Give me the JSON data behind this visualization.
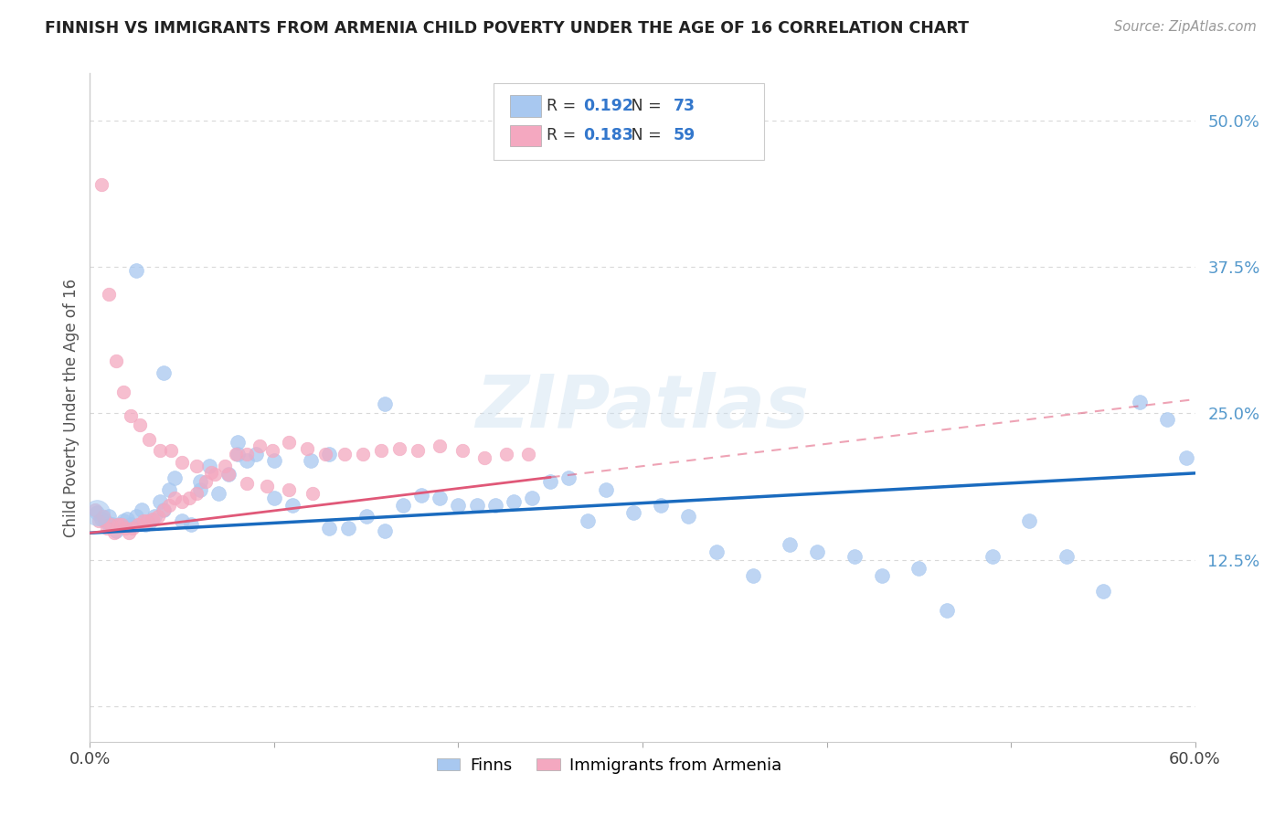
{
  "title": "FINNISH VS IMMIGRANTS FROM ARMENIA CHILD POVERTY UNDER THE AGE OF 16 CORRELATION CHART",
  "source": "Source: ZipAtlas.com",
  "ylabel": "Child Poverty Under the Age of 16",
  "xlim": [
    0.0,
    0.6
  ],
  "ylim": [
    -0.03,
    0.54
  ],
  "finns_R": 0.192,
  "finns_N": 73,
  "armenia_R": 0.183,
  "armenia_N": 59,
  "finns_color": "#a8c8f0",
  "armenia_color": "#f4a8c0",
  "finns_line_color": "#1a6bbf",
  "armenia_line_color": "#e05878",
  "background_color": "#ffffff",
  "grid_color": "#d8d8d8",
  "watermark": "ZIPatlas",
  "finns_slope": 0.085,
  "finns_intercept": 0.148,
  "armenia_slope": 0.19,
  "armenia_intercept": 0.148,
  "finns_x": [
    0.004,
    0.006,
    0.008,
    0.01,
    0.012,
    0.014,
    0.016,
    0.018,
    0.02,
    0.022,
    0.025,
    0.028,
    0.03,
    0.033,
    0.035,
    0.038,
    0.04,
    0.043,
    0.046,
    0.05,
    0.055,
    0.06,
    0.065,
    0.07,
    0.075,
    0.08,
    0.085,
    0.09,
    0.1,
    0.11,
    0.12,
    0.13,
    0.14,
    0.15,
    0.16,
    0.17,
    0.18,
    0.19,
    0.2,
    0.21,
    0.22,
    0.23,
    0.24,
    0.25,
    0.26,
    0.27,
    0.28,
    0.295,
    0.31,
    0.325,
    0.34,
    0.36,
    0.38,
    0.395,
    0.415,
    0.43,
    0.45,
    0.465,
    0.49,
    0.51,
    0.53,
    0.55,
    0.57,
    0.585,
    0.595,
    0.01,
    0.025,
    0.04,
    0.06,
    0.08,
    0.1,
    0.13,
    0.16
  ],
  "finns_y": [
    0.165,
    0.16,
    0.158,
    0.162,
    0.155,
    0.15,
    0.155,
    0.158,
    0.16,
    0.155,
    0.162,
    0.168,
    0.155,
    0.158,
    0.162,
    0.175,
    0.168,
    0.185,
    0.195,
    0.158,
    0.155,
    0.185,
    0.205,
    0.182,
    0.198,
    0.215,
    0.21,
    0.215,
    0.178,
    0.172,
    0.21,
    0.152,
    0.152,
    0.162,
    0.15,
    0.172,
    0.18,
    0.178,
    0.172,
    0.172,
    0.172,
    0.175,
    0.178,
    0.192,
    0.195,
    0.158,
    0.185,
    0.165,
    0.172,
    0.162,
    0.132,
    0.112,
    0.138,
    0.132,
    0.128,
    0.112,
    0.118,
    0.082,
    0.128,
    0.158,
    0.128,
    0.098,
    0.26,
    0.245,
    0.212,
    0.155,
    0.372,
    0.285,
    0.192,
    0.225,
    0.21,
    0.215,
    0.258
  ],
  "armenia_x": [
    0.003,
    0.005,
    0.007,
    0.009,
    0.011,
    0.013,
    0.015,
    0.017,
    0.019,
    0.021,
    0.023,
    0.026,
    0.029,
    0.031,
    0.034,
    0.037,
    0.04,
    0.043,
    0.046,
    0.05,
    0.054,
    0.058,
    0.063,
    0.068,
    0.073,
    0.079,
    0.085,
    0.092,
    0.099,
    0.108,
    0.118,
    0.128,
    0.138,
    0.148,
    0.158,
    0.168,
    0.178,
    0.19,
    0.202,
    0.214,
    0.226,
    0.238,
    0.006,
    0.01,
    0.014,
    0.018,
    0.022,
    0.027,
    0.032,
    0.038,
    0.044,
    0.05,
    0.058,
    0.066,
    0.075,
    0.085,
    0.096,
    0.108,
    0.121
  ],
  "armenia_y": [
    0.168,
    0.158,
    0.162,
    0.152,
    0.155,
    0.148,
    0.155,
    0.155,
    0.152,
    0.148,
    0.152,
    0.155,
    0.158,
    0.158,
    0.16,
    0.162,
    0.168,
    0.172,
    0.178,
    0.175,
    0.178,
    0.182,
    0.192,
    0.198,
    0.205,
    0.215,
    0.215,
    0.222,
    0.218,
    0.225,
    0.22,
    0.215,
    0.215,
    0.215,
    0.218,
    0.22,
    0.218,
    0.222,
    0.218,
    0.212,
    0.215,
    0.215,
    0.445,
    0.352,
    0.295,
    0.268,
    0.248,
    0.24,
    0.228,
    0.218,
    0.218,
    0.208,
    0.205,
    0.2,
    0.198,
    0.19,
    0.188,
    0.185,
    0.182
  ]
}
